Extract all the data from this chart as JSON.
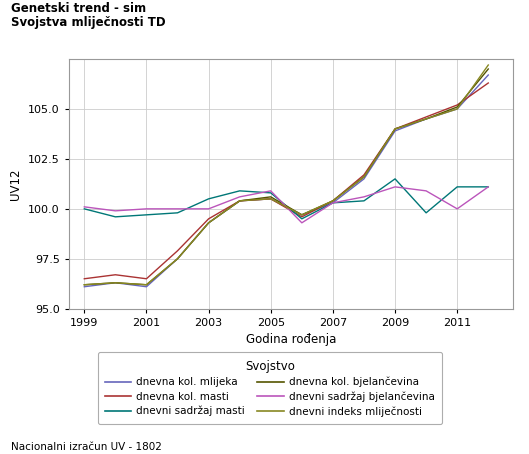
{
  "title_line1": "Genetski trend - sim",
  "title_line2": "Svojstva mliječnosti TD",
  "xlabel": "Godina rođenja",
  "ylabel": "UV12",
  "legend_title": "Svojstvo",
  "footnote": "Nacionalni izračun UV - 1802",
  "xlim": [
    1998.5,
    2012.8
  ],
  "ylim": [
    95.0,
    107.5
  ],
  "yticks": [
    95.0,
    97.5,
    100.0,
    102.5,
    105.0
  ],
  "xticks": [
    1999,
    2001,
    2003,
    2005,
    2007,
    2009,
    2011
  ],
  "series_order": [
    "dnevna kol. mlijeka",
    "dnevna kol. masti",
    "dnevni sadržaj masti",
    "dnevna kol. bjelančevina",
    "dnevni sadržaj bjelančevina",
    "dnevni indeks mliječnosti"
  ],
  "legend_left_col": [
    "dnevna kol. mlijeka",
    "dnevni sadržaj masti",
    "dnevni sadržaj bjelančevina"
  ],
  "legend_right_col": [
    "dnevna kol. masti",
    "dnevna kol. bjelančevina",
    "dnevni indeks mliječnosti"
  ],
  "series": {
    "dnevna kol. mlijeka": {
      "color": "#6666bb",
      "x": [
        1999,
        2000,
        2001,
        2002,
        2003,
        2004,
        2005,
        2006,
        2007,
        2008,
        2009,
        2010,
        2011,
        2012
      ],
      "y": [
        96.1,
        96.3,
        96.1,
        97.5,
        99.3,
        100.4,
        100.5,
        99.7,
        100.3,
        101.5,
        103.9,
        104.5,
        105.0,
        106.7
      ]
    },
    "dnevna kol. masti": {
      "color": "#aa3333",
      "x": [
        1999,
        2000,
        2001,
        2002,
        2003,
        2004,
        2005,
        2006,
        2007,
        2008,
        2009,
        2010,
        2011,
        2012
      ],
      "y": [
        96.5,
        96.7,
        96.5,
        97.9,
        99.5,
        100.4,
        100.5,
        99.6,
        100.4,
        101.7,
        104.0,
        104.6,
        105.2,
        106.3
      ]
    },
    "dnevni sadržaj masti": {
      "color": "#007777",
      "x": [
        1999,
        2000,
        2001,
        2002,
        2003,
        2004,
        2005,
        2006,
        2007,
        2008,
        2009,
        2010,
        2011,
        2012
      ],
      "y": [
        100.0,
        99.6,
        99.7,
        99.8,
        100.5,
        100.9,
        100.8,
        99.5,
        100.3,
        100.4,
        101.5,
        99.8,
        101.1,
        101.1
      ]
    },
    "dnevna kol. bjelančevina": {
      "color": "#555500",
      "x": [
        1999,
        2000,
        2001,
        2002,
        2003,
        2004,
        2005,
        2006,
        2007,
        2008,
        2009,
        2010,
        2011,
        2012
      ],
      "y": [
        96.2,
        96.3,
        96.2,
        97.5,
        99.3,
        100.4,
        100.6,
        99.7,
        100.4,
        101.6,
        104.0,
        104.5,
        105.1,
        107.0
      ]
    },
    "dnevni sadržaj bjelančevina": {
      "color": "#bb55bb",
      "x": [
        1999,
        2000,
        2001,
        2002,
        2003,
        2004,
        2005,
        2006,
        2007,
        2008,
        2009,
        2010,
        2011,
        2012
      ],
      "y": [
        100.1,
        99.9,
        100.0,
        100.0,
        100.0,
        100.6,
        100.9,
        99.3,
        100.3,
        100.6,
        101.1,
        100.9,
        100.0,
        101.1
      ]
    },
    "dnevni indeks mliječnosti": {
      "color": "#888822",
      "x": [
        1999,
        2000,
        2001,
        2002,
        2003,
        2004,
        2005,
        2006,
        2007,
        2008,
        2009,
        2010,
        2011,
        2012
      ],
      "y": [
        96.2,
        96.3,
        96.2,
        97.5,
        99.3,
        100.4,
        100.5,
        99.7,
        100.4,
        101.6,
        104.0,
        104.5,
        105.0,
        107.2
      ]
    }
  },
  "bg_color": "#ffffff",
  "plot_bg_color": "#ffffff",
  "grid_color": "#cccccc",
  "border_color": "#999999",
  "title_fontsize": 8.5,
  "axis_label_fontsize": 8.5,
  "tick_fontsize": 8.0,
  "legend_fontsize": 7.5,
  "legend_title_fontsize": 8.5,
  "footnote_fontsize": 7.5
}
